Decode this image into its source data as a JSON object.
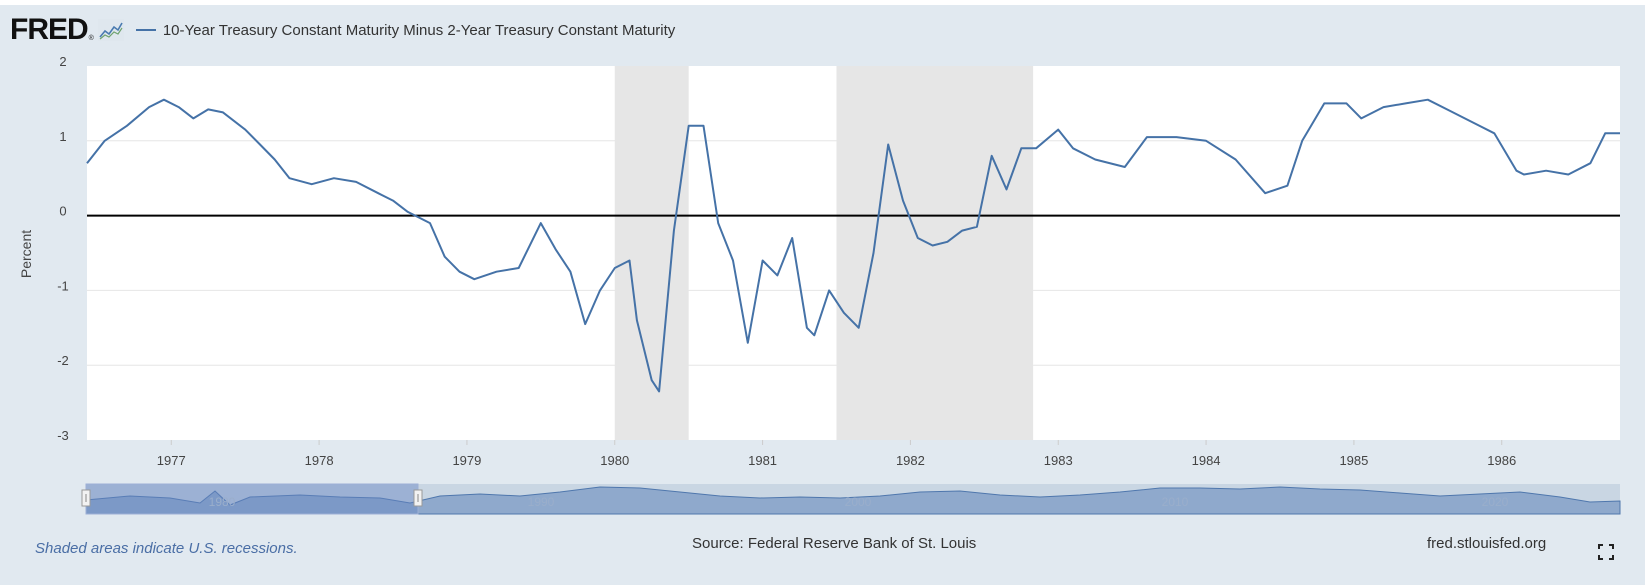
{
  "header": {
    "logo_text": "FRED",
    "logo_mark": "®",
    "series_label": "10-Year Treasury Constant Maturity Minus 2-Year Treasury Constant Maturity"
  },
  "footer": {
    "recession_note": "Shaded areas indicate U.S. recessions.",
    "source": "Source: Federal Reserve Bank of St. Louis",
    "site": "fred.stlouisfed.org"
  },
  "navigator": {
    "labels": [
      "1980",
      "1990",
      "2000",
      "2010",
      "2020"
    ]
  },
  "colors": {
    "line": "#4572a7",
    "recession": "#e6e6e6",
    "background": "#e1e9f0",
    "zero_line": "#000000"
  },
  "chart_data": {
    "type": "line",
    "title": "",
    "xlabel": "",
    "ylabel": "Percent",
    "ylim": [
      -3,
      2
    ],
    "yticks": [
      "2",
      "1",
      "0",
      "-1",
      "-2",
      "-3"
    ],
    "xticks": [
      "1977",
      "1978",
      "1979",
      "1980",
      "1981",
      "1982",
      "1983",
      "1984",
      "1985",
      "1986"
    ],
    "x_range": [
      1976.43,
      1986.8
    ],
    "recessions": [
      [
        1980.0,
        1980.5
      ],
      [
        1981.5,
        1982.83
      ]
    ],
    "series": [
      {
        "name": "10-Year Treasury Constant Maturity Minus 2-Year Treasury Constant Maturity",
        "x": [
          1976.43,
          1976.55,
          1976.7,
          1976.85,
          1976.95,
          1977.05,
          1977.15,
          1977.25,
          1977.35,
          1977.5,
          1977.6,
          1977.7,
          1977.8,
          1977.95,
          1978.1,
          1978.25,
          1978.4,
          1978.5,
          1978.6,
          1978.75,
          1978.85,
          1978.95,
          1979.05,
          1979.2,
          1979.35,
          1979.5,
          1979.6,
          1979.7,
          1979.8,
          1979.9,
          1980.0,
          1980.1,
          1980.15,
          1980.25,
          1980.3,
          1980.4,
          1980.5,
          1980.6,
          1980.7,
          1980.8,
          1980.9,
          1981.0,
          1981.1,
          1981.2,
          1981.3,
          1981.35,
          1981.45,
          1981.55,
          1981.65,
          1981.75,
          1981.85,
          1981.95,
          1982.05,
          1982.15,
          1982.25,
          1982.35,
          1982.45,
          1982.55,
          1982.65,
          1982.75,
          1982.85,
          1983.0,
          1983.1,
          1983.25,
          1983.45,
          1983.6,
          1983.8,
          1984.0,
          1984.2,
          1984.4,
          1984.55,
          1984.65,
          1984.8,
          1984.95,
          1985.05,
          1985.2,
          1985.35,
          1985.5,
          1985.65,
          1985.8,
          1985.95,
          1986.1,
          1986.15,
          1986.3,
          1986.45,
          1986.6,
          1986.7,
          1986.8
        ],
        "values": [
          0.7,
          1.0,
          1.2,
          1.45,
          1.55,
          1.45,
          1.3,
          1.42,
          1.38,
          1.15,
          0.95,
          0.75,
          0.5,
          0.42,
          0.5,
          0.45,
          0.3,
          0.2,
          0.05,
          -0.1,
          -0.55,
          -0.75,
          -0.85,
          -0.75,
          -0.7,
          -0.1,
          -0.45,
          -0.75,
          -1.45,
          -1.0,
          -0.7,
          -0.6,
          -1.4,
          -2.2,
          -2.35,
          -0.2,
          1.2,
          1.2,
          -0.1,
          -0.6,
          -1.7,
          -0.6,
          -0.8,
          -0.3,
          -1.5,
          -1.6,
          -1.0,
          -1.3,
          -1.5,
          -0.5,
          0.95,
          0.2,
          -0.3,
          -0.4,
          -0.35,
          -0.2,
          -0.15,
          0.8,
          0.35,
          0.9,
          0.9,
          1.15,
          0.9,
          0.75,
          0.65,
          1.05,
          1.05,
          1.0,
          0.75,
          0.3,
          0.4,
          1.0,
          1.5,
          1.5,
          1.3,
          1.45,
          1.5,
          1.55,
          1.4,
          1.25,
          1.1,
          0.6,
          0.55,
          0.6,
          0.55,
          0.7,
          1.1,
          1.1
        ]
      }
    ],
    "grid": true
  }
}
